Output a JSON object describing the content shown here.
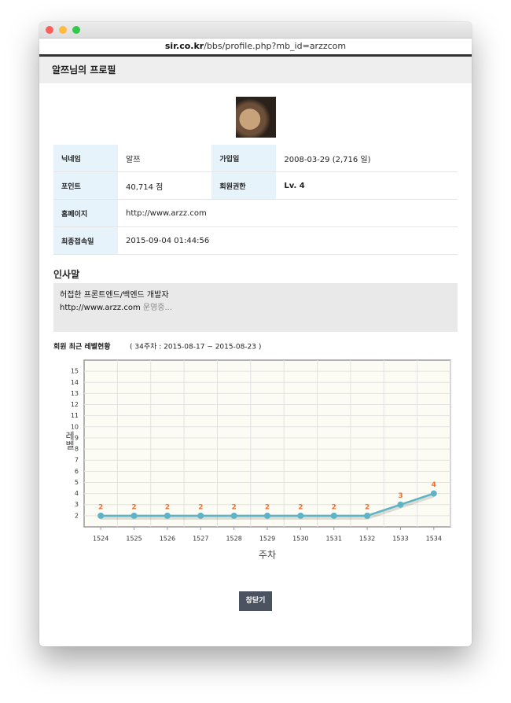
{
  "window": {
    "url_host": "sir.co.kr",
    "url_path": "/bbs/profile.php?mb_id=arzzcom"
  },
  "header": {
    "title": "알쯔님의 프로필"
  },
  "profile_table": {
    "rows": [
      [
        "닉네임",
        "알쯔",
        "가입일",
        "2008-03-29 (2,716 일)"
      ],
      [
        "포인트",
        "40,714 점",
        "회원권한",
        "Lv. 4"
      ],
      [
        "홈페이지",
        "http://www.arzz.com"
      ],
      [
        "최종접속일",
        "2015-09-04 01:44:56"
      ]
    ]
  },
  "greeting": {
    "title": "인사말",
    "lines": [
      [
        "허접한 프론트엔드/백엔드 개발자"
      ],
      [
        "http://www.arzz.com",
        " 운영중..."
      ]
    ]
  },
  "chart_data": {
    "type": "line",
    "title": "회원 최근 레벨현황",
    "subtitle": "( 34주차 : 2015-08-17 ~ 2015-08-23 )",
    "categories": [
      "1524",
      "1525",
      "1526",
      "1527",
      "1528",
      "1529",
      "1530",
      "1531",
      "1532",
      "1533",
      "1534"
    ],
    "values": [
      2,
      2,
      2,
      2,
      2,
      2,
      2,
      2,
      2,
      3,
      4
    ],
    "color": "#5fb3c4",
    "label_color": "#f07030",
    "ylim": [
      1,
      16
    ],
    "yticks": [
      2,
      3,
      4,
      5,
      6,
      7,
      8,
      9,
      10,
      11,
      12,
      13,
      14,
      15
    ],
    "x_label": "주차",
    "y_label": "레벨",
    "grid": true
  },
  "close_button": "창닫기"
}
